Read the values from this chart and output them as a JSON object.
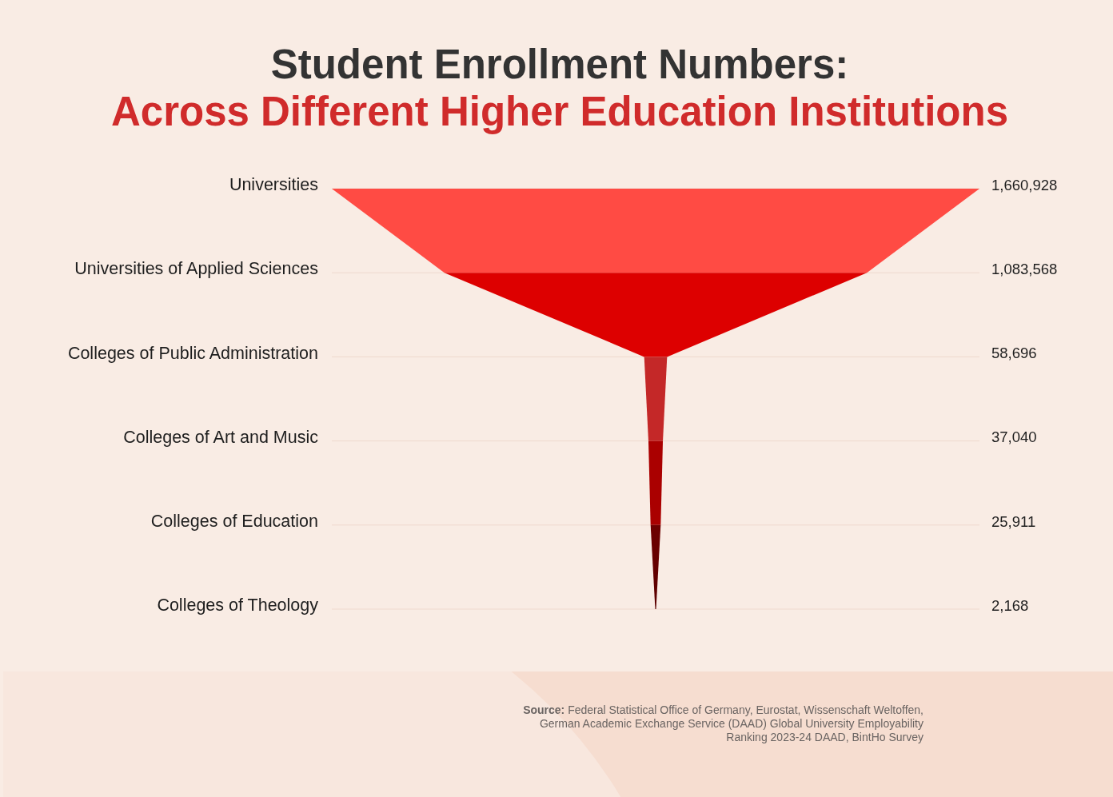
{
  "chart_data": {
    "type": "other",
    "title": "Student Enrollment Numbers:",
    "subtitle": "Across Different Higher Education Institutions",
    "categories": [
      "Universities",
      "Universities of Applied Sciences",
      "Colleges of Public Administration",
      "Colleges of Art and Music",
      "Colleges of Education",
      "Colleges of Theology"
    ],
    "values": [
      1660928,
      1083568,
      58696,
      37040,
      25911,
      2168
    ],
    "value_labels": [
      "1,660,928",
      "1,083,568",
      "58,696",
      "37,040",
      "25,911",
      "2,168"
    ],
    "colors": [
      "#ff4b44",
      "#dd0000",
      "#c42828",
      "#aa0000",
      "#6e0000",
      "#5a0000"
    ],
    "annotations": [
      "Source: Federal Statistical Office of Germany, Eurostat, Wissenschaft Weltoffen, German Academic Exchange Service (DAAD) Global University Employability Ranking 2023-24 DAAD, BintHo Survey"
    ]
  }
}
